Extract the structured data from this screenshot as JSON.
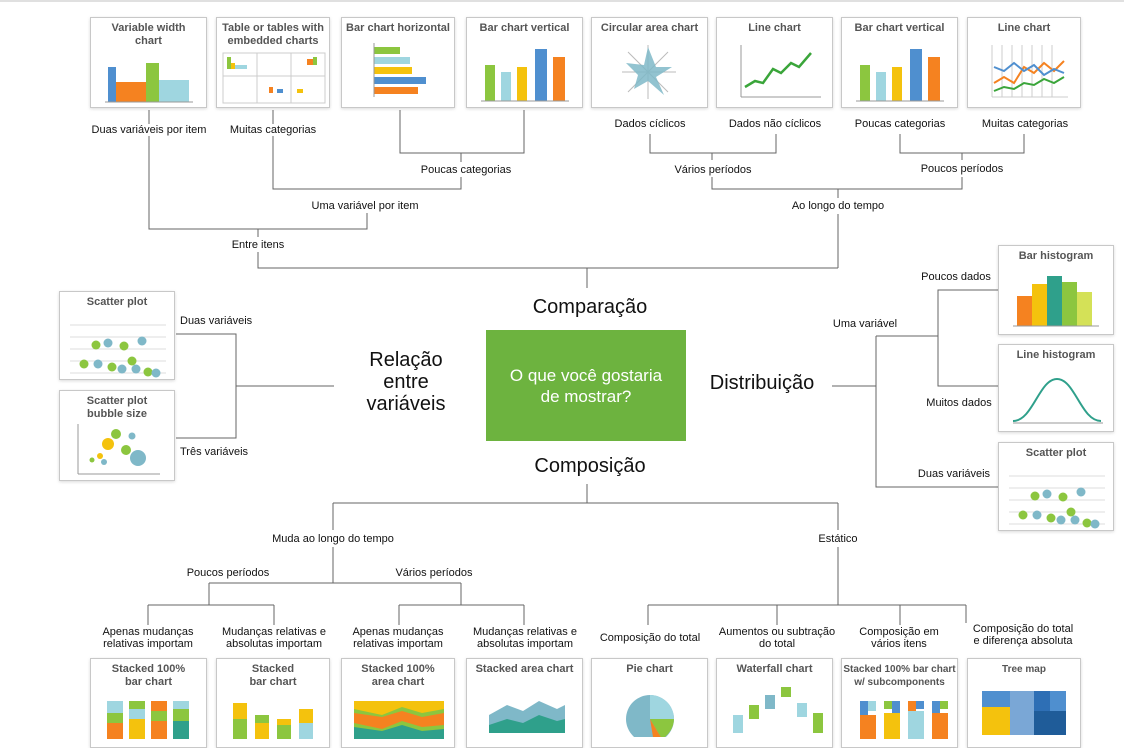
{
  "center": {
    "question": "O que você gostaria\nde mostrar?",
    "comparison": "Comparação",
    "relationship": "Relação\nentre\nvariáveis",
    "distribution": "Distribuição",
    "composition": "Composição"
  },
  "comparison": {
    "between_items": "Entre itens",
    "over_time": "Ao longo do tempo",
    "one_var_per_item": "Uma variável por item",
    "few_categories_mid": "Poucas categorias",
    "many_periods": "Vários períodos",
    "few_periods": "Poucos períodos",
    "leaf_labels": [
      "Duas variáveis por item",
      "Muitas categorias",
      "Dados cíclicos",
      "Dados não cíclicos",
      "Poucas categorias",
      "Muitas categorias"
    ],
    "cards": [
      "Variable width\nchart",
      "Table or tables with\nembedded charts",
      "Bar chart horizontal",
      "Bar chart vertical",
      "Circular area chart",
      "Line chart",
      "Bar chart vertical",
      "Line chart"
    ]
  },
  "relationship": {
    "labels": [
      "Duas variáveis",
      "Três variáveis"
    ],
    "cards": [
      "Scatter plot",
      "Scatter plot\nbubble size"
    ]
  },
  "distribution": {
    "one_variable": "Uma variável",
    "labels": [
      "Poucos dados",
      "Muitos dados",
      "Duas variáveis"
    ],
    "cards": [
      "Bar histogram",
      "Line histogram",
      "Scatter plot"
    ]
  },
  "composition": {
    "changes_over_time": "Muda ao longo do tempo",
    "static": "Estático",
    "few_periods": "Poucos períodos",
    "many_periods": "Vários períodos",
    "leaf_labels": [
      "Apenas mudanças\nrelativas importam",
      "Mudanças  relativas e\nabsolutas importam",
      "Apenas mudanças\nrelativas importam",
      "Mudanças  relativas e\nabsolutas importam",
      "Composição do total",
      "Aumentos ou subtração\ndo total",
      "Composição em\nvários itens",
      "Composição do total\ne diferença absoluta"
    ],
    "cards": [
      "Stacked 100%\nbar chart",
      "Stacked\nbar chart",
      "Stacked 100%\narea chart",
      "Stacked area chart",
      "Pie chart",
      "Waterfall chart",
      "Stacked 100% bar chart\nw/ subcomponents",
      "Tree map"
    ]
  },
  "colors": {
    "center_box": "#6db33f",
    "orange": "#f58220",
    "yellow": "#f4c20d",
    "green": "#8cc63f",
    "blue": "#4f8fcf",
    "teal": "#2fa08b",
    "light_blue": "#9fd6e0"
  }
}
